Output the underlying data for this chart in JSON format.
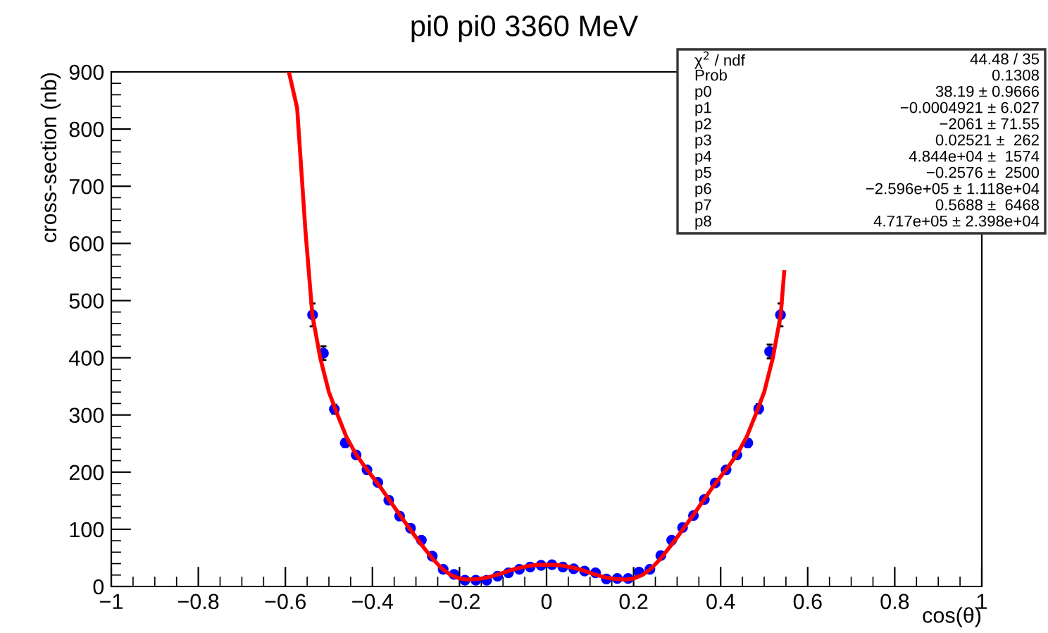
{
  "chart_data": {
    "type": "scatter",
    "title": "pi0 pi0 3360 MeV",
    "xlabel": "cos(θ)",
    "ylabel": "cross-section (nb)",
    "xlim": [
      -1,
      1
    ],
    "ylim": [
      0,
      900
    ],
    "xticks": [
      {
        "value": -1,
        "label": "−1"
      },
      {
        "value": -0.8,
        "label": "−0.8"
      },
      {
        "value": -0.6,
        "label": "−0.6"
      },
      {
        "value": -0.4,
        "label": "−0.4"
      },
      {
        "value": -0.2,
        "label": "−0.2"
      },
      0,
      0.2,
      0.4,
      0.6,
      0.8,
      1
    ],
    "yticks": [
      0,
      100,
      200,
      300,
      400,
      500,
      600,
      700,
      800,
      900
    ],
    "grid": false,
    "series": [
      {
        "color": "#0000ff",
        "marker": "circle",
        "x": [
          -0.5375,
          -0.5125,
          -0.4875,
          -0.4625,
          -0.4375,
          -0.4125,
          -0.3875,
          -0.3625,
          -0.3375,
          -0.3125,
          -0.2875,
          -0.2625,
          -0.2375,
          -0.2125,
          -0.1875,
          -0.1625,
          -0.1375,
          -0.1125,
          -0.0875,
          -0.0625,
          -0.0375,
          -0.0125,
          0.0125,
          0.0375,
          0.0625,
          0.0875,
          0.1125,
          0.1375,
          0.1625,
          0.1875,
          0.2125,
          0.2375,
          0.2625,
          0.2875,
          0.3125,
          0.3375,
          0.3625,
          0.3875,
          0.4125,
          0.4375,
          0.4625,
          0.4875,
          0.5125,
          0.5375
        ],
        "values": [
          475,
          408,
          310,
          251,
          230,
          204,
          182,
          151,
          123,
          102,
          81,
          53,
          30,
          21,
          11,
          11,
          11,
          18,
          24,
          30,
          34,
          37,
          38,
          34,
          31,
          27,
          24,
          13,
          14,
          14,
          25,
          30,
          54,
          81,
          103,
          124,
          152,
          181,
          204,
          230,
          251,
          311,
          411,
          475
        ],
        "errors": [
          20,
          12,
          8,
          7,
          null,
          null,
          null,
          null,
          null,
          null,
          null,
          null,
          null,
          null,
          null,
          null,
          null,
          null,
          null,
          null,
          null,
          null,
          null,
          null,
          null,
          null,
          null,
          null,
          null,
          null,
          null,
          null,
          null,
          null,
          null,
          null,
          null,
          null,
          null,
          null,
          7,
          8,
          12,
          20
        ]
      },
      {
        "type": "line",
        "color": "#ff0000",
        "line_style": "solid",
        "marker": "none",
        "x": [
          -0.592,
          -0.573,
          -0.554,
          -0.538,
          -0.52,
          -0.5,
          -0.48,
          -0.46,
          -0.44,
          -0.42,
          -0.4,
          -0.38,
          -0.36,
          -0.34,
          -0.32,
          -0.3,
          -0.28,
          -0.26,
          -0.24,
          -0.22,
          -0.2,
          -0.18,
          -0.16,
          -0.14,
          -0.12,
          -0.1,
          -0.08,
          -0.06,
          -0.04,
          -0.02,
          0,
          0.02,
          0.04,
          0.06,
          0.08,
          0.1,
          0.12,
          0.14,
          0.16,
          0.18,
          0.2,
          0.22,
          0.24,
          0.26,
          0.28,
          0.3,
          0.32,
          0.34,
          0.36,
          0.38,
          0.4,
          0.42,
          0.44,
          0.46,
          0.48,
          0.5,
          0.52,
          0.538,
          0.546
        ],
        "values": [
          900,
          837,
          623,
          475,
          400,
          340,
          300,
          262,
          234,
          212,
          192,
          172,
          150,
          128,
          107,
          86,
          66,
          47,
          31,
          20,
          14,
          12,
          13,
          15,
          19,
          24,
          29,
          33,
          36,
          38,
          38,
          38,
          36,
          33,
          29,
          24,
          19,
          15,
          13,
          12,
          14,
          20,
          31,
          47,
          66,
          86,
          107,
          128,
          150,
          172,
          192,
          212,
          234,
          262,
          300,
          340,
          400,
          475,
          550
        ]
      }
    ],
    "annotations": [
      "χ$^{2}$ / ndf",
      "44.48 / 35",
      "Prob",
      "0.1308",
      "p0",
      "38.19 ± 0.9666",
      "p1",
      "−0.0004921 ± 6.027",
      "p2",
      "−2061 ± 71.55",
      "p3",
      "0.02521 ±  262",
      "p4",
      "4.844e+04 ±  1574",
      "p5",
      "−0.2576 ±  2500",
      "p6",
      "−2.596e+05 ± 1.118e+04",
      "p7",
      "0.5688 ±  6468",
      "p8",
      "4.717e+05 ± 2.398e+04"
    ]
  }
}
